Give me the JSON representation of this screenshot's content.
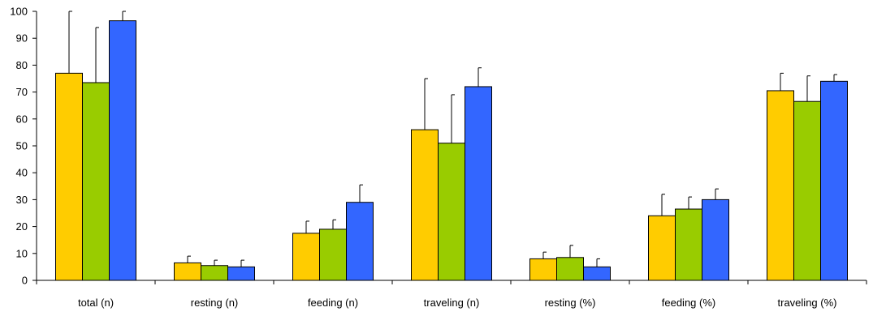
{
  "chart_data": {
    "type": "bar",
    "title": "",
    "xlabel": "",
    "ylabel": "",
    "ylim": [
      0,
      100
    ],
    "yticks": [
      0,
      10,
      20,
      30,
      40,
      50,
      60,
      70,
      80,
      90,
      100
    ],
    "grid": false,
    "legend": "none",
    "categories": [
      "total (n)",
      "resting (n)",
      "feeding (n)",
      "traveling (n)",
      "resting (%)",
      "feeding (%)",
      "traveling (%)"
    ],
    "series": [
      {
        "color": "#FFCC00",
        "values": [
          77,
          6.5,
          17.5,
          56,
          8,
          24,
          70.5
        ],
        "error_upper": [
          100,
          9,
          22,
          75,
          10.5,
          32,
          77
        ]
      },
      {
        "color": "#99CC00",
        "values": [
          73.5,
          5.5,
          19,
          51,
          8.5,
          26.5,
          66.5
        ],
        "error_upper": [
          94,
          7.5,
          22.5,
          69,
          13,
          31,
          76
        ]
      },
      {
        "color": "#3366FF",
        "values": [
          96.5,
          5,
          29,
          72,
          5,
          30,
          74
        ],
        "error_upper": [
          100,
          7.5,
          35.5,
          79,
          8,
          34,
          76.5
        ]
      }
    ]
  }
}
